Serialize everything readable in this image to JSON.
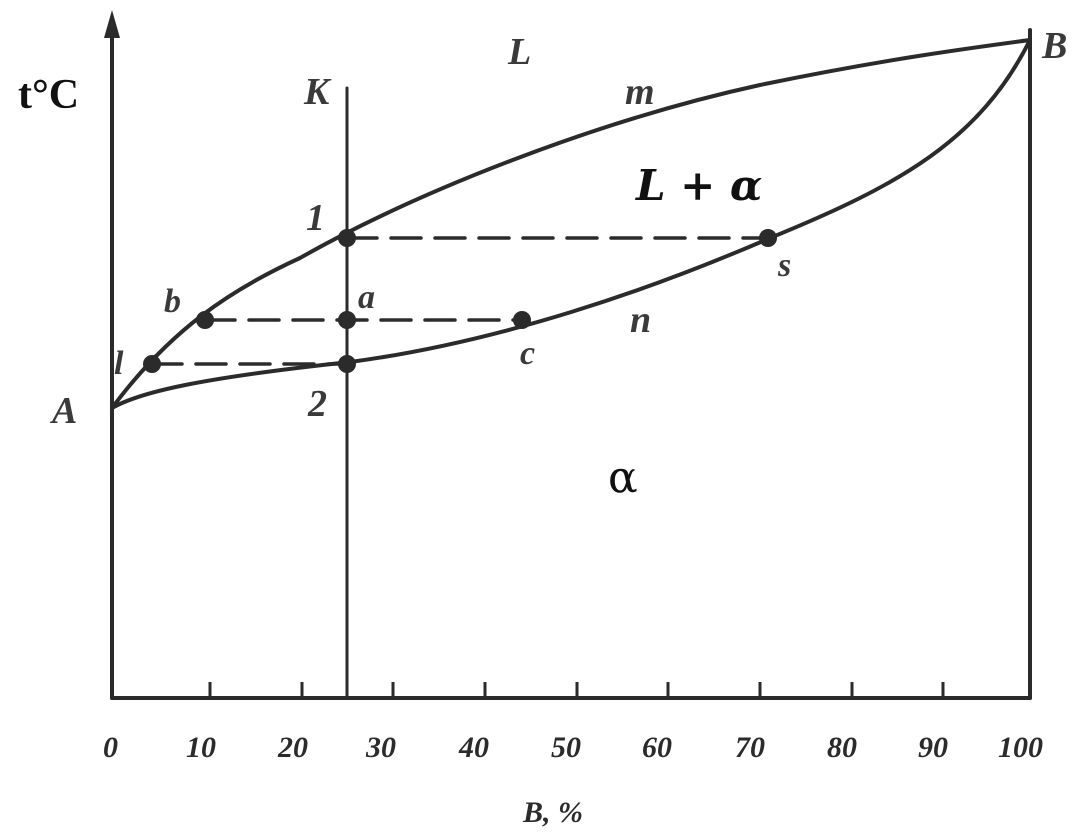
{
  "axes": {
    "y_label": "t°C",
    "x_label": "B, %",
    "x_ticks": [
      "0",
      "10",
      "20",
      "30",
      "40",
      "50",
      "60",
      "70",
      "80",
      "90",
      "100"
    ]
  },
  "points": {
    "A": "A",
    "B": "B",
    "K": "K",
    "one": "1",
    "two": "2",
    "a": "a",
    "b": "b",
    "c": "c",
    "s": "s",
    "l": "l"
  },
  "curves": {
    "liquidus": "m",
    "solidus": "n"
  },
  "regions": {
    "liquid": "L",
    "two_phase": "L + α",
    "solid": "α"
  }
}
